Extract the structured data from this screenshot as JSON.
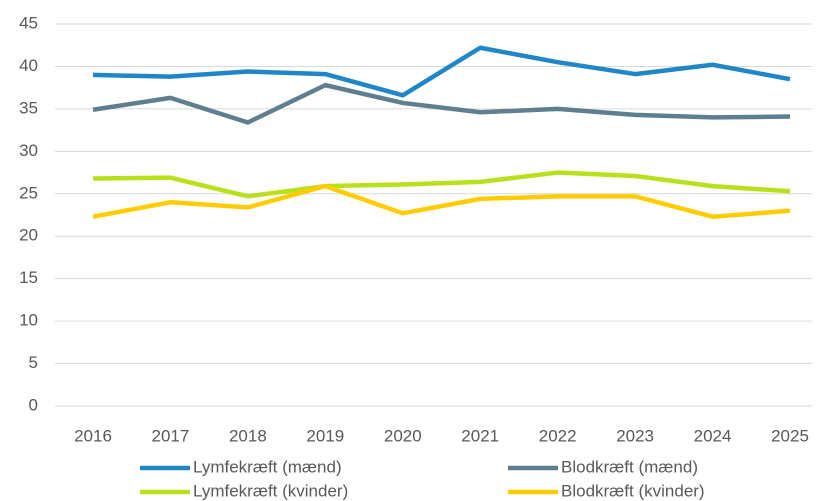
{
  "chart_data": {
    "type": "line",
    "categories": [
      "2016",
      "2017",
      "2018",
      "2019",
      "2020",
      "2021",
      "2022",
      "2023",
      "2024",
      "2025"
    ],
    "series": [
      {
        "name": "Lymfekræft (mænd)",
        "color": "#1f87c8",
        "values": [
          39.0,
          38.8,
          39.4,
          39.1,
          36.6,
          42.2,
          40.5,
          39.1,
          40.2,
          38.5
        ]
      },
      {
        "name": "Blodkræft (mænd)",
        "color": "#5f7f8f",
        "values": [
          34.9,
          36.3,
          33.4,
          37.8,
          35.7,
          34.6,
          35.0,
          34.3,
          34.0,
          34.1
        ]
      },
      {
        "name": "Lymfekræft (kvinder)",
        "color": "#b9e01b",
        "values": [
          26.8,
          26.9,
          24.7,
          25.9,
          26.1,
          26.4,
          27.5,
          27.1,
          25.9,
          25.3
        ]
      },
      {
        "name": "Blodkræft (kvinder)",
        "color": "#ffcc00",
        "values": [
          22.3,
          24.0,
          23.4,
          25.9,
          22.7,
          24.4,
          24.7,
          24.7,
          22.3,
          23.0
        ]
      }
    ],
    "ylim": [
      0,
      45
    ],
    "yticks": [
      0,
      5,
      10,
      15,
      20,
      25,
      30,
      35,
      40,
      45
    ],
    "grid": true,
    "legend": "bottom"
  }
}
